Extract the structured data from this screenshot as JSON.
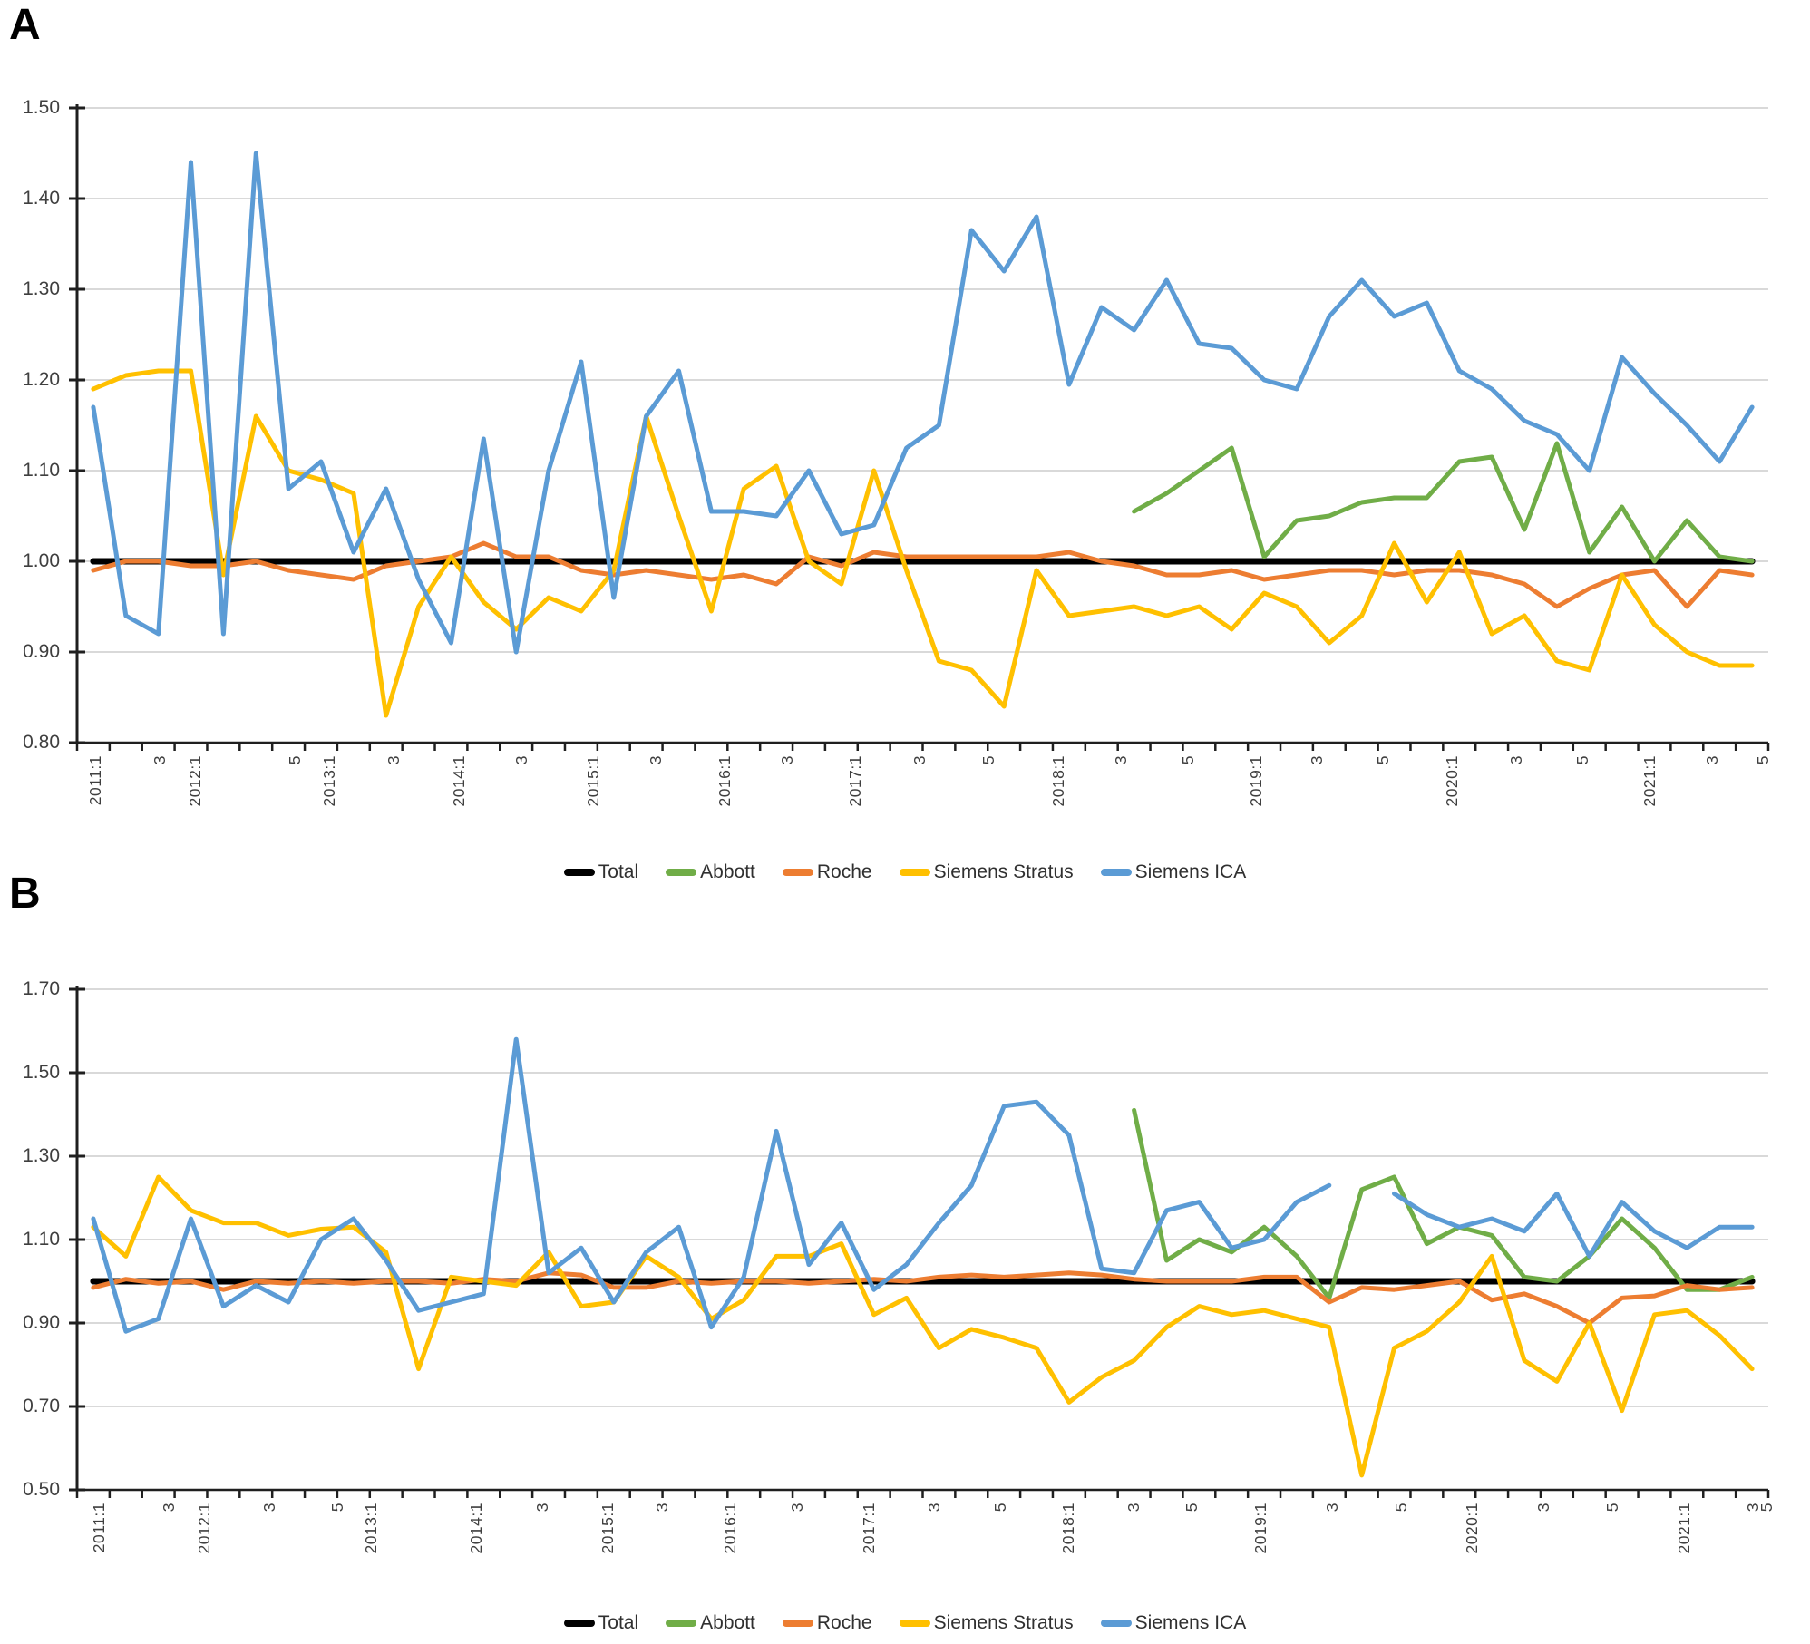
{
  "panels": [
    {
      "letter": "A"
    },
    {
      "letter": "B"
    }
  ],
  "legend": {
    "items": [
      {
        "label": "Total",
        "color": "#000000"
      },
      {
        "label": "Abbott",
        "color": "#70AD47"
      },
      {
        "label": "Roche",
        "color": "#ED7D31"
      },
      {
        "label": "Siemens Stratus",
        "color": "#FFC000"
      },
      {
        "label": "Siemens ICA",
        "color": "#5B9BD5"
      }
    ]
  },
  "chart_data": [
    {
      "type": "line",
      "panel": "A",
      "title": "",
      "xlabel": "",
      "ylabel": "",
      "ylim": [
        0.8,
        1.5
      ],
      "ytick_step": 0.1,
      "ytick_labels": [
        "1.50",
        "1.40",
        "1.30",
        "1.20",
        "1.10",
        "1.00",
        "0.90",
        "0.80"
      ],
      "grid": true,
      "legend_position": "bottom",
      "n_points": 52,
      "x_tick_labels": [
        {
          "text": "2011:1",
          "pos": 0.012
        },
        {
          "text": "3",
          "pos": 0.05
        },
        {
          "text": "2012:1",
          "pos": 0.071
        },
        {
          "text": "5",
          "pos": 0.13
        },
        {
          "text": "2013:1",
          "pos": 0.15
        },
        {
          "text": "3",
          "pos": 0.188
        },
        {
          "text": "2014:1",
          "pos": 0.227
        },
        {
          "text": "3",
          "pos": 0.264
        },
        {
          "text": "2015:1",
          "pos": 0.306
        },
        {
          "text": "3",
          "pos": 0.343
        },
        {
          "text": "2016:1",
          "pos": 0.384
        },
        {
          "text": "3",
          "pos": 0.421
        },
        {
          "text": "2017:1",
          "pos": 0.461
        },
        {
          "text": "3",
          "pos": 0.499
        },
        {
          "text": "5",
          "pos": 0.54
        },
        {
          "text": "2018:1",
          "pos": 0.581
        },
        {
          "text": "3",
          "pos": 0.618
        },
        {
          "text": "5",
          "pos": 0.658
        },
        {
          "text": "2019:1",
          "pos": 0.698
        },
        {
          "text": "3",
          "pos": 0.734
        },
        {
          "text": "5",
          "pos": 0.773
        },
        {
          "text": "2020:1",
          "pos": 0.814
        },
        {
          "text": "3",
          "pos": 0.852
        },
        {
          "text": "5",
          "pos": 0.891
        },
        {
          "text": "2021:1",
          "pos": 0.931
        },
        {
          "text": "3",
          "pos": 0.968
        },
        {
          "text": "5",
          "pos": 0.998
        }
      ],
      "series": [
        {
          "name": "Total",
          "color": "#000000",
          "width": 7,
          "values": [
            1,
            1,
            1,
            1,
            1,
            1,
            1,
            1,
            1,
            1,
            1,
            1,
            1,
            1,
            1,
            1,
            1,
            1,
            1,
            1,
            1,
            1,
            1,
            1,
            1,
            1,
            1,
            1,
            1,
            1,
            1,
            1,
            1,
            1,
            1,
            1,
            1,
            1,
            1,
            1,
            1,
            1,
            1,
            1,
            1,
            1,
            1,
            1,
            1,
            1,
            1,
            1
          ]
        },
        {
          "name": "Abbott",
          "color": "#70AD47",
          "width": 5,
          "values": [
            null,
            null,
            null,
            null,
            null,
            null,
            null,
            null,
            null,
            null,
            null,
            null,
            null,
            null,
            null,
            null,
            null,
            null,
            null,
            null,
            null,
            null,
            null,
            null,
            null,
            null,
            null,
            null,
            null,
            null,
            null,
            null,
            1.055,
            1.075,
            1.1,
            1.125,
            1.005,
            1.045,
            1.05,
            1.065,
            1.07,
            1.07,
            1.11,
            1.115,
            1.035,
            1.13,
            1.01,
            1.06,
            1.0,
            1.045,
            1.005,
            1.0
          ]
        },
        {
          "name": "Roche",
          "color": "#ED7D31",
          "width": 5,
          "values": [
            0.99,
            1.0,
            1.0,
            0.995,
            0.995,
            1.0,
            0.99,
            0.985,
            0.98,
            0.995,
            1.0,
            1.005,
            1.02,
            1.005,
            1.005,
            0.99,
            0.985,
            0.99,
            0.985,
            0.98,
            0.985,
            0.975,
            1.005,
            0.995,
            1.01,
            1.005,
            1.005,
            1.005,
            1.005,
            1.005,
            1.01,
            1.0,
            0.995,
            0.985,
            0.985,
            0.99,
            0.98,
            0.985,
            0.99,
            0.99,
            0.985,
            0.99,
            0.99,
            0.985,
            0.975,
            0.95,
            0.97,
            0.985,
            0.99,
            0.95,
            0.99,
            0.985
          ]
        },
        {
          "name": "Siemens Stratus",
          "color": "#FFC000",
          "width": 5,
          "values": [
            1.19,
            1.205,
            1.21,
            1.21,
            0.985,
            1.16,
            1.1,
            1.09,
            1.075,
            0.83,
            0.95,
            1.005,
            0.955,
            0.925,
            0.96,
            0.945,
            0.99,
            1.16,
            1.05,
            0.945,
            1.08,
            1.105,
            1.0,
            0.975,
            1.1,
            0.99,
            0.89,
            0.88,
            0.84,
            0.99,
            0.94,
            0.945,
            0.95,
            0.94,
            0.95,
            0.925,
            0.965,
            0.95,
            0.91,
            0.94,
            1.02,
            0.955,
            1.01,
            0.92,
            0.94,
            0.89,
            0.88,
            0.985,
            0.93,
            0.9,
            0.885,
            0.885
          ]
        },
        {
          "name": "Siemens ICA",
          "color": "#5B9BD5",
          "width": 5,
          "values": [
            1.17,
            0.94,
            0.92,
            1.44,
            0.92,
            1.45,
            1.08,
            1.11,
            1.01,
            1.08,
            0.98,
            0.91,
            1.135,
            0.9,
            1.1,
            1.22,
            0.96,
            1.16,
            1.21,
            1.055,
            1.055,
            1.05,
            1.1,
            1.03,
            1.04,
            1.125,
            1.15,
            1.365,
            1.32,
            1.38,
            1.195,
            1.28,
            1.255,
            1.31,
            1.24,
            1.235,
            1.2,
            1.19,
            1.27,
            1.31,
            1.27,
            1.285,
            1.21,
            1.19,
            1.155,
            1.14,
            1.1,
            1.225,
            1.185,
            1.15,
            1.11,
            1.17
          ]
        }
      ]
    },
    {
      "type": "line",
      "panel": "B",
      "title": "",
      "xlabel": "",
      "ylabel": "",
      "ylim": [
        0.5,
        1.7
      ],
      "ytick_step": 0.2,
      "ytick_labels": [
        "1.70",
        "1.50",
        "1.30",
        "1.10",
        "0.90",
        "0.70",
        "0.50"
      ],
      "grid": true,
      "legend_position": "bottom",
      "n_points": 52,
      "x_tick_labels": [
        {
          "text": "2011:1",
          "pos": 0.014
        },
        {
          "text": "3",
          "pos": 0.055
        },
        {
          "text": "2012:1",
          "pos": 0.076
        },
        {
          "text": "3",
          "pos": 0.115
        },
        {
          "text": "5",
          "pos": 0.155
        },
        {
          "text": "2013:1",
          "pos": 0.175
        },
        {
          "text": "2014:1",
          "pos": 0.237
        },
        {
          "text": "3",
          "pos": 0.276
        },
        {
          "text": "2015:1",
          "pos": 0.315
        },
        {
          "text": "3",
          "pos": 0.347
        },
        {
          "text": "2016:1",
          "pos": 0.387
        },
        {
          "text": "3",
          "pos": 0.427
        },
        {
          "text": "2017:1",
          "pos": 0.469
        },
        {
          "text": "3",
          "pos": 0.508
        },
        {
          "text": "5",
          "pos": 0.547
        },
        {
          "text": "2018:1",
          "pos": 0.587
        },
        {
          "text": "3",
          "pos": 0.626
        },
        {
          "text": "5",
          "pos": 0.66
        },
        {
          "text": "2019:1",
          "pos": 0.701
        },
        {
          "text": "3",
          "pos": 0.743
        },
        {
          "text": "5",
          "pos": 0.784
        },
        {
          "text": "2020:1",
          "pos": 0.826
        },
        {
          "text": "3",
          "pos": 0.868
        },
        {
          "text": "5",
          "pos": 0.909
        },
        {
          "text": "2021:1",
          "pos": 0.951
        },
        {
          "text": "3",
          "pos": 0.992
        },
        {
          "text": "5",
          "pos": 1.0
        }
      ],
      "series": [
        {
          "name": "Total",
          "color": "#000000",
          "width": 7,
          "values": [
            1,
            1,
            1,
            1,
            1,
            1,
            1,
            1,
            1,
            1,
            1,
            1,
            1,
            1,
            1,
            1,
            1,
            1,
            1,
            1,
            1,
            1,
            1,
            1,
            1,
            1,
            1,
            1,
            1,
            1,
            1,
            1,
            1,
            1,
            1,
            1,
            1,
            1,
            1,
            1,
            1,
            1,
            1,
            1,
            1,
            1,
            1,
            1,
            1,
            1,
            1,
            1
          ]
        },
        {
          "name": "Abbott",
          "color": "#70AD47",
          "width": 5,
          "values": [
            null,
            null,
            null,
            null,
            null,
            null,
            null,
            null,
            null,
            null,
            null,
            null,
            null,
            null,
            null,
            null,
            null,
            null,
            null,
            null,
            null,
            null,
            null,
            null,
            null,
            null,
            null,
            null,
            null,
            null,
            null,
            null,
            1.41,
            1.05,
            1.1,
            1.07,
            1.13,
            1.06,
            0.96,
            1.22,
            1.25,
            1.09,
            1.13,
            1.11,
            1.01,
            1.0,
            1.06,
            1.15,
            1.08,
            0.98,
            0.98,
            1.01
          ]
        },
        {
          "name": "Roche",
          "color": "#ED7D31",
          "width": 5,
          "values": [
            0.985,
            1.005,
            0.995,
            1.0,
            0.98,
            1.0,
            0.995,
            1.0,
            0.995,
            1.0,
            1.0,
            0.995,
            1.005,
            1.0,
            1.02,
            1.015,
            0.985,
            0.985,
            1.0,
            0.995,
            1.0,
            1.0,
            0.995,
            1.0,
            1.005,
            1.0,
            1.01,
            1.015,
            1.01,
            1.015,
            1.02,
            1.015,
            1.005,
            1.0,
            1.0,
            1.0,
            1.01,
            1.01,
            0.95,
            0.985,
            0.98,
            0.99,
            1.0,
            0.955,
            0.97,
            0.94,
            0.9,
            0.96,
            0.965,
            0.99,
            0.98,
            0.985
          ]
        },
        {
          "name": "Siemens Stratus",
          "color": "#FFC000",
          "width": 5,
          "values": [
            1.13,
            1.06,
            1.25,
            1.17,
            1.14,
            1.14,
            1.11,
            1.125,
            1.13,
            1.07,
            0.79,
            1.01,
            1.0,
            0.99,
            1.07,
            0.94,
            0.95,
            1.06,
            1.01,
            0.91,
            0.955,
            1.06,
            1.06,
            1.09,
            0.92,
            0.96,
            0.84,
            0.885,
            0.865,
            0.84,
            0.71,
            0.77,
            0.81,
            0.89,
            0.94,
            0.92,
            0.93,
            0.91,
            0.89,
            0.535,
            0.84,
            0.88,
            0.95,
            1.06,
            0.81,
            0.76,
            0.9,
            0.69,
            0.92,
            0.93,
            0.87,
            0.79
          ]
        },
        {
          "name": "Siemens ICA",
          "color": "#5B9BD5",
          "width": 5,
          "values": [
            1.15,
            0.88,
            0.91,
            1.15,
            0.94,
            0.99,
            0.95,
            1.1,
            1.15,
            1.05,
            0.93,
            0.95,
            0.97,
            1.58,
            1.02,
            1.08,
            0.95,
            1.07,
            1.13,
            0.89,
            1.01,
            1.36,
            1.04,
            1.14,
            0.98,
            1.04,
            1.14,
            1.23,
            1.42,
            1.43,
            1.35,
            1.03,
            1.02,
            1.17,
            1.19,
            1.08,
            1.1,
            1.19,
            1.23,
            null,
            1.21,
            1.16,
            1.13,
            1.15,
            1.12,
            1.21,
            1.06,
            1.19,
            1.12,
            1.08,
            1.13,
            1.13
          ]
        }
      ]
    }
  ]
}
